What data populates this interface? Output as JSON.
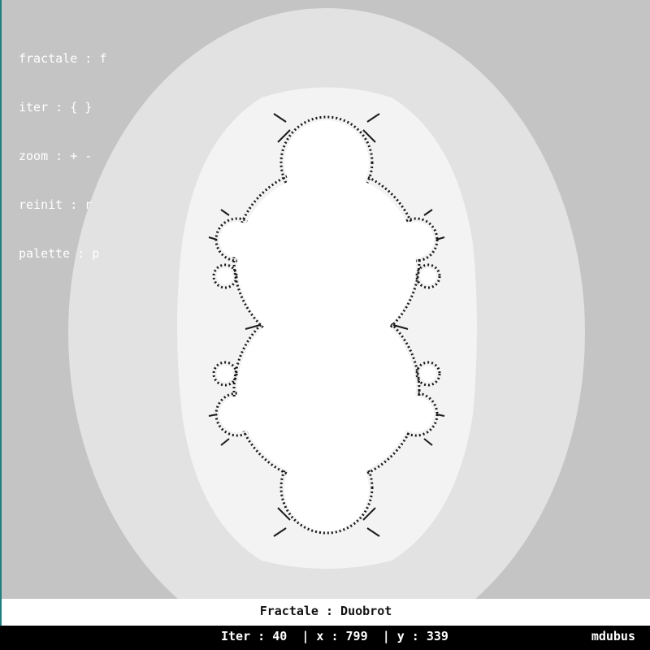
{
  "help": {
    "fractal": "fractale : f",
    "iter": "iter : { }",
    "zoom": "zoom : + -",
    "reinit": "reinit : r",
    "palette": "palette : p"
  },
  "title": {
    "label": "Fractale : Duobrot"
  },
  "status": {
    "iter_label": "Iter : 40",
    "x_label": "| x : 799",
    "y_label": "| y : 339",
    "author": "mdubus"
  },
  "colors": {
    "background": "#c4c4c4",
    "band_light": "#e2e2e2",
    "band_lighter": "#f3f3f3",
    "set_fill": "#ffffff",
    "fringe": "#1a1a1a",
    "border_accent": "#1e7f7f"
  }
}
